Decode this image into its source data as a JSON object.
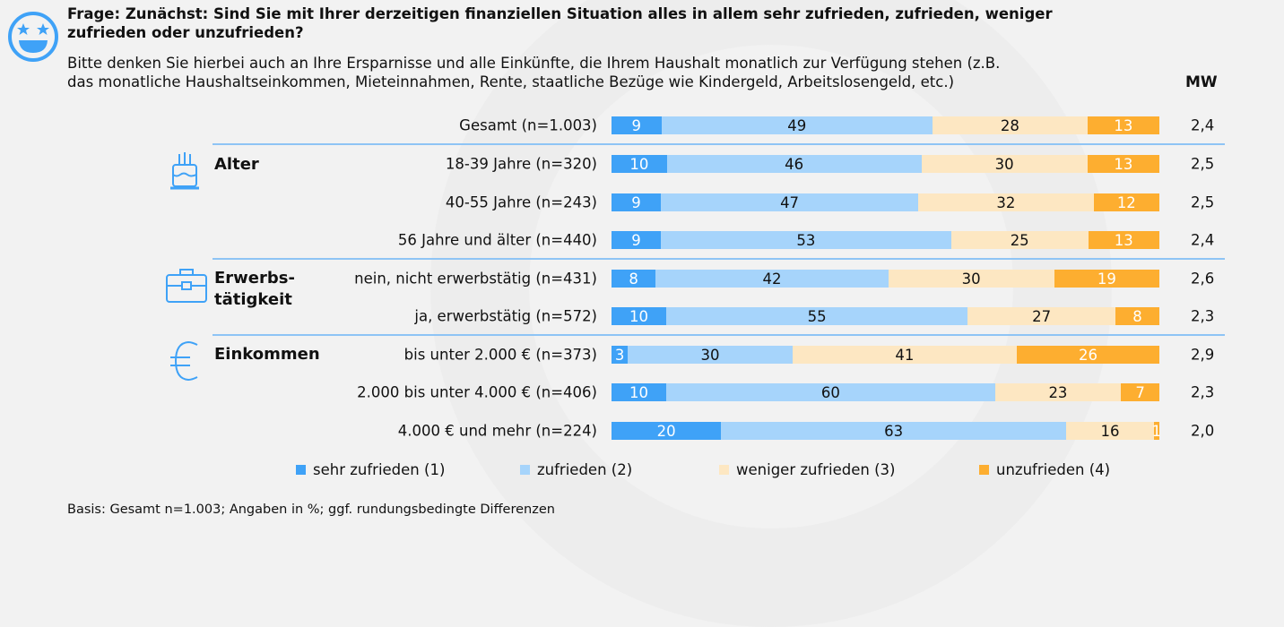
{
  "question_bold": "Frage: Zunächst: Sind Sie mit Ihrer derzeitigen finanziellen Situation alles in allem sehr zufrieden, zufrieden, weniger zufrieden oder unzufrieden?",
  "question_note": "Bitte denken Sie hierbei auch an Ihre Ersparnisse und alle Einkünfte, die Ihrem Haushalt monatlich zur Verfügung stehen (z.B. das monatliche Haushaltseinkommen, Mieteinnahmen, Rente, staatliche Bezüge wie Kindergeld, Arbeitslosengeld, etc.)",
  "mw_header": "MW",
  "groups": [
    {
      "label": "Alter",
      "icon": "birthday-cake-icon"
    },
    {
      "label": "Erwerbs-\ntätigkeit",
      "icon": "briefcase-icon"
    },
    {
      "label": "Einkommen",
      "icon": "euro-icon"
    }
  ],
  "footnote": "Basis: Gesamt n=1.003; Angaben in %; ggf. rundungsbedingte Differenzen",
  "chart_data": {
    "type": "bar",
    "orientation": "horizontal-stacked-100",
    "categories": [
      "Gesamt (n=1.003)",
      "18-39 Jahre (n=320)",
      "40-55 Jahre (n=243)",
      "56 Jahre und älter (n=440)",
      "nein, nicht erwerbstätig (n=431)",
      "ja, erwerbstätig (n=572)",
      "bis unter 2.000 € (n=373)",
      "2.000 bis unter 4.000 € (n=406)",
      "4.000 € und mehr (n=224)"
    ],
    "series": [
      {
        "name": "sehr zufrieden (1)",
        "color": "#3fa2f7",
        "text_color": "#ffffff",
        "values": [
          9,
          10,
          9,
          9,
          8,
          10,
          3,
          10,
          20
        ]
      },
      {
        "name": "zufrieden (2)",
        "color": "#a6d4fb",
        "text_color": "#111111",
        "values": [
          49,
          46,
          47,
          53,
          42,
          55,
          30,
          60,
          63
        ]
      },
      {
        "name": "weniger zufrieden (3)",
        "color": "#fde7c2",
        "text_color": "#111111",
        "values": [
          28,
          30,
          32,
          25,
          30,
          27,
          41,
          23,
          16
        ]
      },
      {
        "name": "unzufrieden (4)",
        "color": "#fdae30",
        "text_color": "#ffffff",
        "values": [
          13,
          13,
          12,
          13,
          19,
          8,
          26,
          7,
          1
        ]
      }
    ],
    "mw": [
      "2,4",
      "2,5",
      "2,5",
      "2,4",
      "2,6",
      "2,3",
      "2,9",
      "2,3",
      "2,0"
    ],
    "legend_position": "bottom",
    "grid": false
  }
}
